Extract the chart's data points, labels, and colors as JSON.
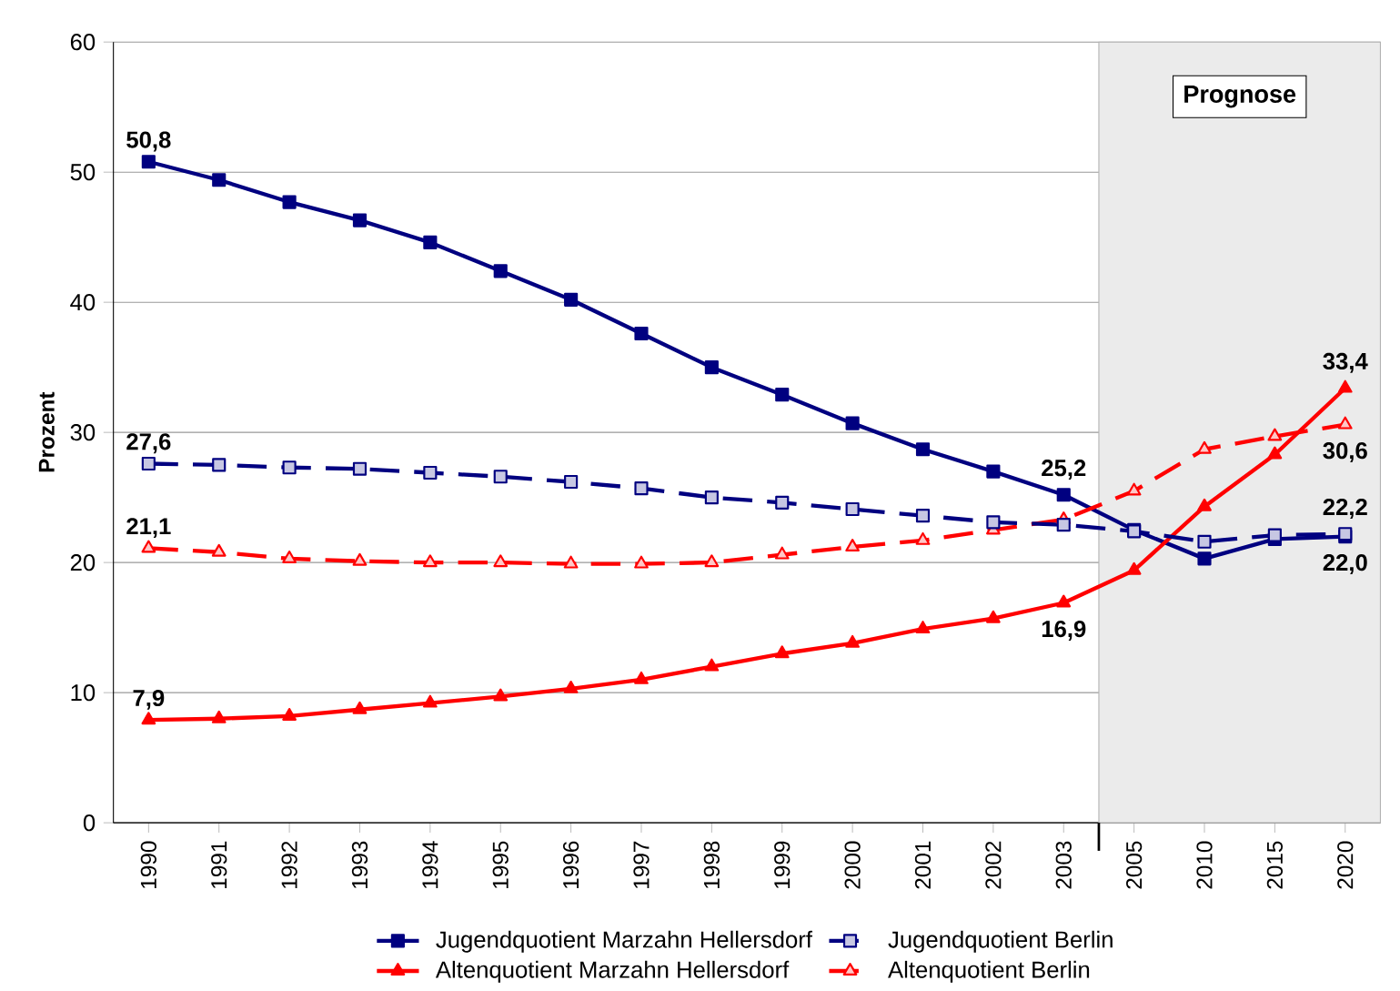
{
  "chart_data": {
    "type": "line",
    "ylabel": "Prozent",
    "categories": [
      "1990",
      "1991",
      "1992",
      "1993",
      "1994",
      "1995",
      "1996",
      "1997",
      "1998",
      "1999",
      "2000",
      "2001",
      "2002",
      "2003",
      "2005",
      "2010",
      "2015",
      "2020"
    ],
    "series": [
      {
        "name": "Jugendquotient Marzahn Hellersdorf",
        "color": "#000080",
        "marker": "square",
        "line_style": "solid",
        "values": [
          50.8,
          49.4,
          47.7,
          46.3,
          44.6,
          42.4,
          40.2,
          37.6,
          35.0,
          32.9,
          30.7,
          28.7,
          27.0,
          25.2,
          22.5,
          20.3,
          21.8,
          22.0
        ],
        "value_labels": [
          "50,8",
          null,
          null,
          null,
          null,
          null,
          null,
          null,
          null,
          null,
          null,
          null,
          null,
          "25,2",
          null,
          null,
          null,
          "22,0"
        ]
      },
      {
        "name": "Jugendquotient Berlin",
        "color": "#000080",
        "marker": "square",
        "line_style": "dashed",
        "values": [
          27.6,
          27.5,
          27.3,
          27.2,
          26.9,
          26.6,
          26.2,
          25.7,
          25.0,
          24.6,
          24.1,
          23.6,
          23.1,
          22.9,
          22.4,
          21.6,
          22.1,
          22.2
        ],
        "value_labels": [
          "27,6",
          null,
          null,
          null,
          null,
          null,
          null,
          null,
          null,
          null,
          null,
          null,
          null,
          null,
          null,
          null,
          null,
          "22,2"
        ]
      },
      {
        "name": "Altenquotient Marzahn Hellersdorf",
        "color": "#ff0000",
        "marker": "triangle",
        "line_style": "solid",
        "values": [
          7.9,
          8.0,
          8.2,
          8.7,
          9.2,
          9.7,
          10.3,
          11.0,
          12.0,
          13.0,
          13.8,
          14.9,
          15.7,
          16.9,
          19.4,
          24.3,
          28.3,
          33.4
        ],
        "value_labels": [
          "7,9",
          null,
          null,
          null,
          null,
          null,
          null,
          null,
          null,
          null,
          null,
          null,
          null,
          "16,9",
          null,
          null,
          null,
          "33,4"
        ]
      },
      {
        "name": "Altenquotient Berlin",
        "color": "#ff0000",
        "marker": "triangle",
        "line_style": "dashed",
        "values": [
          21.1,
          20.8,
          20.3,
          20.1,
          20.0,
          20.0,
          19.9,
          19.9,
          20.0,
          20.6,
          21.2,
          21.7,
          22.5,
          23.3,
          25.5,
          28.7,
          29.7,
          30.6
        ],
        "value_labels": [
          "21,1",
          null,
          null,
          null,
          null,
          null,
          null,
          null,
          null,
          null,
          null,
          null,
          null,
          null,
          null,
          null,
          null,
          "30,6"
        ]
      }
    ],
    "ylim": [
      0,
      60
    ],
    "yticks": [
      0,
      10,
      20,
      30,
      40,
      50,
      60
    ],
    "grid": "y",
    "legend": "bottom",
    "bands": [
      {
        "axis": "x",
        "from": "2005",
        "to": "2020",
        "label": "Prognose",
        "color": "#ebebeb"
      }
    ]
  }
}
